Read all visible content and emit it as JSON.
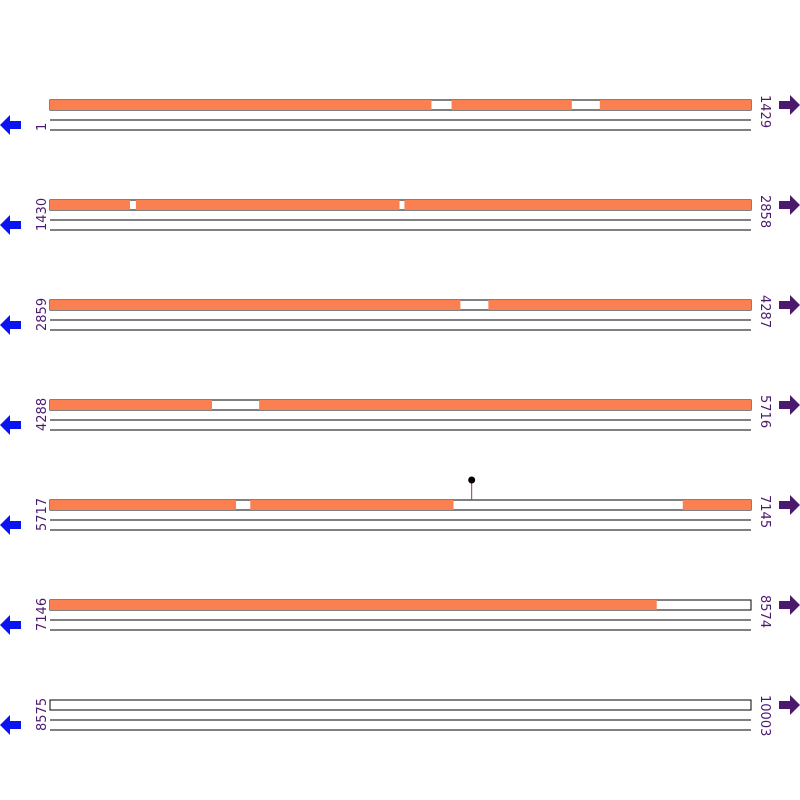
{
  "rows": [
    {
      "start": "1",
      "end": "1429",
      "from": 1,
      "to": 1429,
      "blocks": [
        [
          1,
          778
        ],
        [
          819,
          1064
        ],
        [
          1121,
          1429
        ]
      ],
      "markers": []
    },
    {
      "start": "1430",
      "end": "2858",
      "from": 1430,
      "to": 2858,
      "blocks": [
        [
          1430,
          1593
        ],
        [
          1605,
          2142
        ],
        [
          2152,
          2858
        ]
      ],
      "markers": []
    },
    {
      "start": "2859",
      "end": "4287",
      "from": 2859,
      "to": 4287,
      "blocks": [
        [
          2859,
          3695
        ],
        [
          3752,
          4287
        ]
      ],
      "markers": []
    },
    {
      "start": "4288",
      "end": "5716",
      "from": 4288,
      "to": 5716,
      "blocks": [
        [
          4288,
          4618
        ],
        [
          4714,
          5716
        ]
      ],
      "markers": []
    },
    {
      "start": "5717",
      "end": "7145",
      "from": 5717,
      "to": 7145,
      "blocks": [
        [
          5717,
          6096
        ],
        [
          6125,
          6539
        ],
        [
          7006,
          7145
        ]
      ],
      "markers": [
        6576
      ]
    },
    {
      "start": "7146",
      "end": "8574",
      "from": 7146,
      "to": 8574,
      "blocks": [
        [
          7146,
          8382
        ]
      ],
      "markers": []
    },
    {
      "start": "8575",
      "end": "10003",
      "from": 8575,
      "to": 10003,
      "blocks": [],
      "markers": []
    }
  ]
}
